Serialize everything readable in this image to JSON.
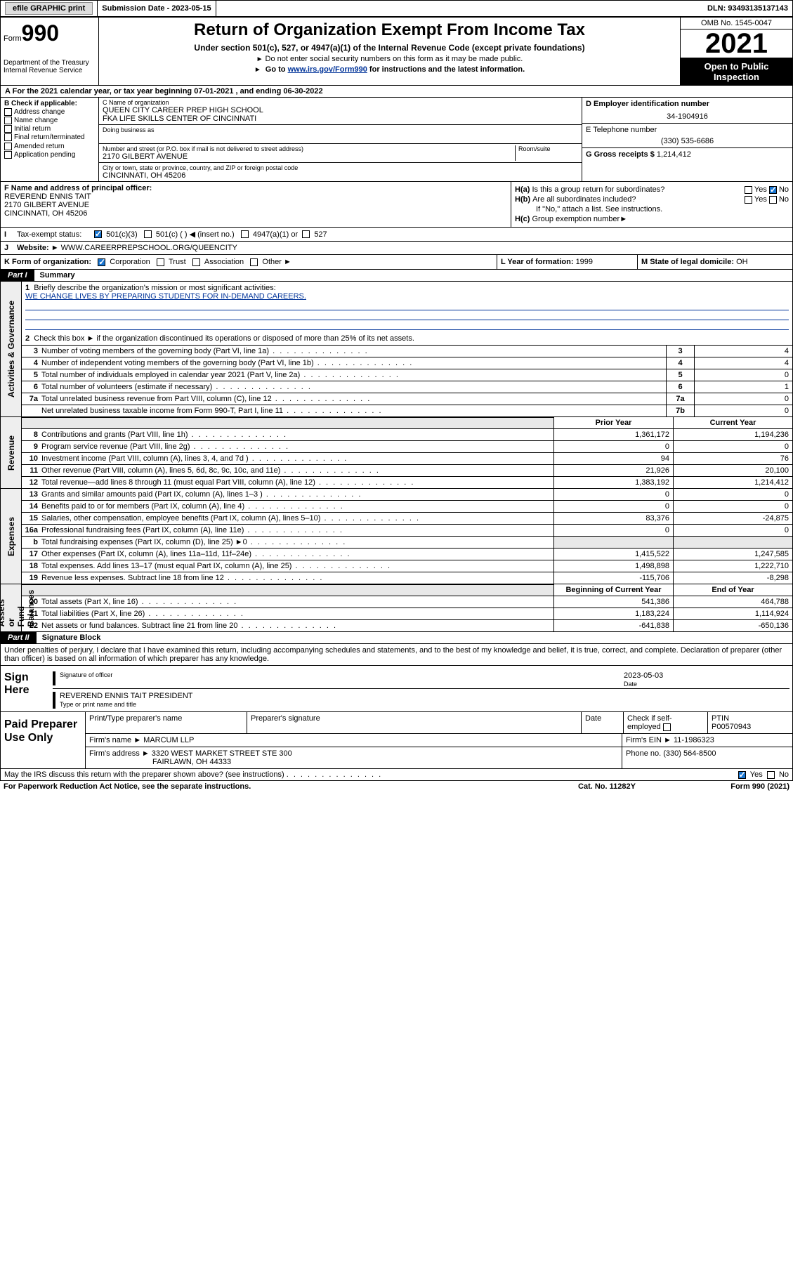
{
  "topbar": {
    "efile": "efile GRAPHIC print",
    "subdate_label": "Submission Date - 2023-05-15",
    "dln": "DLN: 93493135137143"
  },
  "header": {
    "form_word": "Form",
    "form_num": "990",
    "dept": "Department of the Treasury\nInternal Revenue Service",
    "title": "Return of Organization Exempt From Income Tax",
    "subtitle": "Under section 501(c), 527, or 4947(a)(1) of the Internal Revenue Code (except private foundations)",
    "note1": "Do not enter social security numbers on this form as it may be made public.",
    "note2_pre": "Go to ",
    "note2_link": "www.irs.gov/Form990",
    "note2_post": " for instructions and the latest information.",
    "omb": "OMB No. 1545-0047",
    "year": "2021",
    "open": "Open to Public Inspection"
  },
  "period": "For the 2021 calendar year, or tax year beginning 07-01-2021   , and ending 06-30-2022",
  "boxB": {
    "label": "B Check if applicable:",
    "items": [
      "Address change",
      "Name change",
      "Initial return",
      "Final return/terminated",
      "Amended return",
      "Application pending"
    ]
  },
  "boxC": {
    "name_lbl": "C Name of organization",
    "name1": "QUEEN CITY CAREER PREP HIGH SCHOOL",
    "name2": "FKA LIFE SKILLS CENTER OF CINCINNATI",
    "dba_lbl": "Doing business as",
    "addr_lbl": "Number and street (or P.O. box if mail is not delivered to street address)",
    "room_lbl": "Room/suite",
    "addr": "2170 GILBERT AVENUE",
    "city_lbl": "City or town, state or province, country, and ZIP or foreign postal code",
    "city": "CINCINNATI, OH  45206"
  },
  "boxDE": {
    "d_lbl": "D Employer identification number",
    "d_val": "34-1904916",
    "e_lbl": "E Telephone number",
    "e_val": "(330) 535-6686",
    "g_lbl": "G Gross receipts $ ",
    "g_val": "1,214,412"
  },
  "boxF": {
    "lbl": "F Name and address of principal officer:",
    "l1": "REVEREND ENNIS TAIT",
    "l2": "2170 GILBERT AVENUE",
    "l3": "CINCINNATI, OH  45206"
  },
  "boxH": {
    "ha": "Is this a group return for subordinates?",
    "hb": "Are all subordinates included?",
    "hb_note": "If \"No,\" attach a list. See instructions.",
    "hc_lbl": "Group exemption number",
    "yes": "Yes",
    "no": "No"
  },
  "tax": {
    "lbl": "Tax-exempt status:",
    "o1": "501(c)(3)",
    "o2": "501(c) (   )  ◀ (insert no.)",
    "o3": "4947(a)(1) or",
    "o4": "527"
  },
  "web": {
    "lbl": "Website: ►",
    "val": "WWW.CAREERPREPSCHOOL.ORG/QUEENCITY"
  },
  "korg": {
    "lbl": "K Form of organization:",
    "opts": [
      "Corporation",
      "Trust",
      "Association",
      "Other ►"
    ],
    "l_lbl": "L Year of formation: ",
    "l_val": "1999",
    "m_lbl": "M State of legal domicile: ",
    "m_val": "OH"
  },
  "parts": {
    "p1": "Part I",
    "p1t": "Summary",
    "p2": "Part II",
    "p2t": "Signature Block"
  },
  "vlabels": {
    "gov": "Activities & Governance",
    "rev": "Revenue",
    "exp": "Expenses",
    "net": "Net Assets or\nFund Balances"
  },
  "summary": {
    "line1": "Briefly describe the organization's mission or most significant activities:",
    "mission": "WE CHANGE LIVES BY PREPARING STUDENTS FOR IN-DEMAND CAREERS.",
    "line2": "Check this box ►        if the organization discontinued its operations or disposed of more than 25% of its net assets.",
    "rows": [
      {
        "n": "3",
        "t": "Number of voting members of the governing body (Part VI, line 1a)",
        "box": "3",
        "v": "4"
      },
      {
        "n": "4",
        "t": "Number of independent voting members of the governing body (Part VI, line 1b)",
        "box": "4",
        "v": "4"
      },
      {
        "n": "5",
        "t": "Total number of individuals employed in calendar year 2021 (Part V, line 2a)",
        "box": "5",
        "v": "0"
      },
      {
        "n": "6",
        "t": "Total number of volunteers (estimate if necessary)",
        "box": "6",
        "v": "1"
      },
      {
        "n": "7a",
        "t": "Total unrelated business revenue from Part VIII, column (C), line 12",
        "box": "7a",
        "v": "0"
      },
      {
        "n": "",
        "t": "Net unrelated business taxable income from Form 990-T, Part I, line 11",
        "box": "7b",
        "v": "0"
      }
    ]
  },
  "fin_headers": {
    "prior": "Prior Year",
    "curr": "Current Year",
    "beg": "Beginning of Current Year",
    "end": "End of Year"
  },
  "revenue": [
    {
      "n": "8",
      "t": "Contributions and grants (Part VIII, line 1h)",
      "p": "1,361,172",
      "c": "1,194,236"
    },
    {
      "n": "9",
      "t": "Program service revenue (Part VIII, line 2g)",
      "p": "0",
      "c": "0"
    },
    {
      "n": "10",
      "t": "Investment income (Part VIII, column (A), lines 3, 4, and 7d )",
      "p": "94",
      "c": "76"
    },
    {
      "n": "11",
      "t": "Other revenue (Part VIII, column (A), lines 5, 6d, 8c, 9c, 10c, and 11e)",
      "p": "21,926",
      "c": "20,100"
    },
    {
      "n": "12",
      "t": "Total revenue—add lines 8 through 11 (must equal Part VIII, column (A), line 12)",
      "p": "1,383,192",
      "c": "1,214,412"
    }
  ],
  "expenses": [
    {
      "n": "13",
      "t": "Grants and similar amounts paid (Part IX, column (A), lines 1–3 )",
      "p": "0",
      "c": "0"
    },
    {
      "n": "14",
      "t": "Benefits paid to or for members (Part IX, column (A), line 4)",
      "p": "0",
      "c": "0"
    },
    {
      "n": "15",
      "t": "Salaries, other compensation, employee benefits (Part IX, column (A), lines 5–10)",
      "p": "83,376",
      "c": "-24,875"
    },
    {
      "n": "16a",
      "t": "Professional fundraising fees (Part IX, column (A), line 11e)",
      "p": "0",
      "c": "0"
    },
    {
      "n": "b",
      "t": "Total fundraising expenses (Part IX, column (D), line 25) ►0",
      "p": "",
      "c": "",
      "shade": true
    },
    {
      "n": "17",
      "t": "Other expenses (Part IX, column (A), lines 11a–11d, 11f–24e)",
      "p": "1,415,522",
      "c": "1,247,585"
    },
    {
      "n": "18",
      "t": "Total expenses. Add lines 13–17 (must equal Part IX, column (A), line 25)",
      "p": "1,498,898",
      "c": "1,222,710"
    },
    {
      "n": "19",
      "t": "Revenue less expenses. Subtract line 18 from line 12",
      "p": "-115,706",
      "c": "-8,298"
    }
  ],
  "netassets": [
    {
      "n": "20",
      "t": "Total assets (Part X, line 16)",
      "p": "541,386",
      "c": "464,788"
    },
    {
      "n": "21",
      "t": "Total liabilities (Part X, line 26)",
      "p": "1,183,224",
      "c": "1,114,924"
    },
    {
      "n": "22",
      "t": "Net assets or fund balances. Subtract line 21 from line 20",
      "p": "-641,838",
      "c": "-650,136"
    }
  ],
  "declare": "Under penalties of perjury, I declare that I have examined this return, including accompanying schedules and statements, and to the best of my knowledge and belief, it is true, correct, and complete. Declaration of preparer (other than officer) is based on all information of which preparer has any knowledge.",
  "sign": {
    "lead": "Sign Here",
    "sig_lbl": "Signature of officer",
    "date_lbl": "Date",
    "date_val": "2023-05-03",
    "name": "REVEREND ENNIS TAIT PRESIDENT",
    "name_lbl": "Type or print name and title"
  },
  "prep": {
    "lead": "Paid Preparer Use Only",
    "r1": [
      "Print/Type preparer's name",
      "Preparer's signature",
      "Date"
    ],
    "r1_chk": "Check       if self-employed",
    "ptin_lbl": "PTIN",
    "ptin": "P00570943",
    "firm_name_lbl": "Firm's name   ►",
    "firm_name": "MARCUM LLP",
    "ein_lbl": "Firm's EIN ►",
    "ein": "11-1986323",
    "addr_lbl": "Firm's address ►",
    "addr1": "3320 WEST MARKET STREET STE 300",
    "addr2": "FAIRLAWN, OH  44333",
    "phone_lbl": "Phone no. ",
    "phone": "(330) 564-8500"
  },
  "footer": {
    "discuss": "May the IRS discuss this return with the preparer shown above? (see instructions)",
    "paperwork": "For Paperwork Reduction Act Notice, see the separate instructions.",
    "cat": "Cat. No. 11282Y",
    "formref": "Form 990 (2021)"
  }
}
